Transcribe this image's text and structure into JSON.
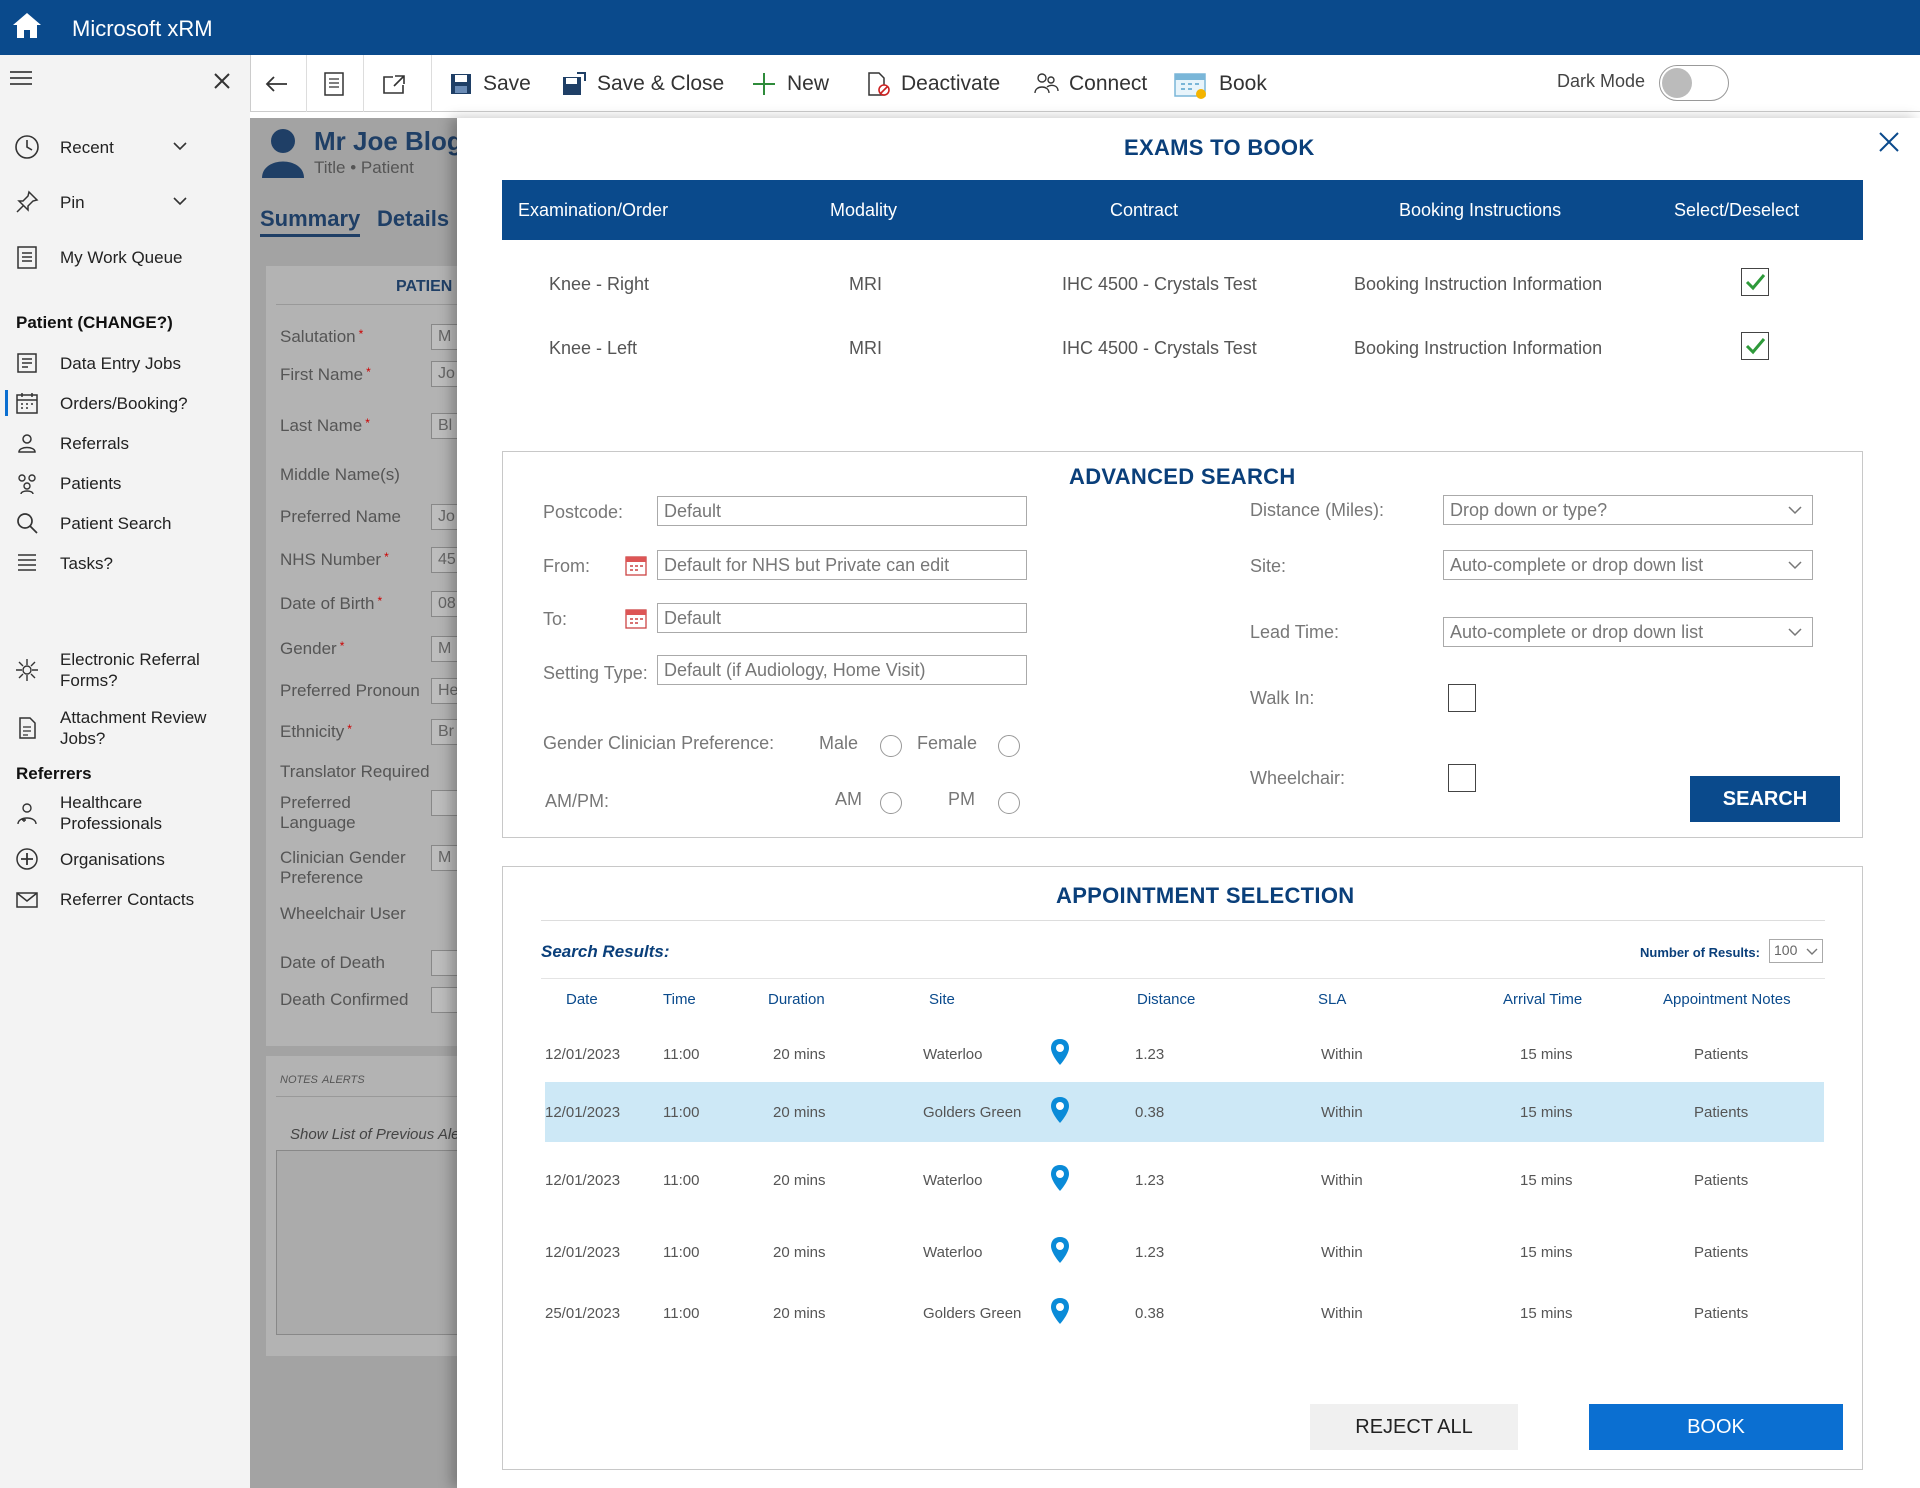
{
  "app": {
    "title": "Microsoft xRM"
  },
  "nav": {
    "recent": "Recent",
    "pin": "Pin",
    "work_queue": "My Work Queue",
    "patient_section": "Patient (CHANGE?)",
    "patient_items": [
      "Data Entry Jobs",
      "Orders/Booking?",
      "Referrals",
      "Patients",
      "Patient Search",
      "Tasks?",
      "Electronic Referral Forms?",
      "Attachment Review Jobs?"
    ],
    "referrers_section": "Referrers",
    "referrer_items": [
      "Healthcare Professionals",
      "Organisations",
      "Referrer Contacts"
    ]
  },
  "toolbar": {
    "save": "Save",
    "save_close": "Save & Close",
    "new": "New",
    "deactivate": "Deactivate",
    "connect": "Connect",
    "book": "Book",
    "dark_mode": "Dark Mode"
  },
  "record": {
    "name": "Mr Joe Blog",
    "subtitle_title": "Title",
    "subtitle_type": "Patient",
    "tabs": [
      "Summary",
      "Details"
    ],
    "section": "PATIEN",
    "fields": [
      {
        "label": "Salutation",
        "value": "M",
        "required": true
      },
      {
        "label": "First Name",
        "value": "Jo",
        "required": true
      },
      {
        "label": "Last Name",
        "value": "Bl",
        "required": true
      },
      {
        "label": "Middle Name(s)",
        "value": "",
        "required": false
      },
      {
        "label": "Preferred Name",
        "value": "Jo",
        "required": false
      },
      {
        "label": "NHS Number",
        "value": "45",
        "required": true
      },
      {
        "label": "Date of Birth",
        "value": "08",
        "required": true
      },
      {
        "label": "Gender",
        "value": "M",
        "required": true
      },
      {
        "label": "Preferred Pronoun",
        "value": "He",
        "required": false
      },
      {
        "label": "Ethnicity",
        "value": "Br",
        "required": true
      },
      {
        "label": "Translator Required",
        "value": "",
        "required": false
      },
      {
        "label": "Preferred Language",
        "value": "",
        "required": false
      },
      {
        "label": "Clinician Gender Preference",
        "value": "M",
        "required": false
      },
      {
        "label": "Wheelchair User",
        "value": "",
        "required": false
      },
      {
        "label": "Date of Death",
        "value": "",
        "required": false
      },
      {
        "label": "Death Confirmed",
        "value": "",
        "required": false
      }
    ],
    "notes_tabs": [
      "NOTES",
      "ALERTS"
    ],
    "show_list": "Show List of Previous Ale"
  },
  "exams": {
    "title": "EXAMS TO BOOK",
    "headers": [
      "Examination/Order",
      "Modality",
      "Contract",
      "Booking Instructions",
      "Select/Deselect"
    ],
    "rows": [
      {
        "exam": "Knee - Right",
        "modality": "MRI",
        "contract": "IHC 4500 - Crystals Test",
        "instructions": "Booking Instruction Information",
        "selected": true
      },
      {
        "exam": "Knee - Left",
        "modality": "MRI",
        "contract": "IHC 4500 - Crystals Test",
        "instructions": "Booking Instruction Information",
        "selected": true
      }
    ]
  },
  "advanced": {
    "title": "ADVANCED SEARCH",
    "postcode_label": "Postcode:",
    "postcode_value": "Default",
    "from_label": "From:",
    "from_value": "Default for NHS but Private can edit",
    "to_label": "To:",
    "to_value": "Default",
    "setting_label": "Setting Type:",
    "setting_value": "Default (if Audiology, Home Visit)",
    "gender_label": "Gender Clinician Preference:",
    "male": "Male",
    "female": "Female",
    "ampm_label": "AM/PM:",
    "am": "AM",
    "pm": "PM",
    "distance_label": "Distance (Miles):",
    "distance_value": "Drop down or type?",
    "site_label": "Site:",
    "site_value": "Auto-complete or drop down list",
    "lead_label": "Lead Time:",
    "lead_value": "Auto-complete or drop down list",
    "walkin_label": "Walk In:",
    "wheelchair_label": "Wheelchair:",
    "search_button": "SEARCH"
  },
  "appointments": {
    "title": "APPOINTMENT SELECTION",
    "results_label": "Search Results:",
    "num_results_label": "Number of Results:",
    "num_results_value": "100",
    "headers": [
      "Date",
      "Time",
      "Duration",
      "Site",
      "Distance",
      "SLA",
      "Arrival Time",
      "Appointment Notes"
    ],
    "rows": [
      {
        "date": "12/01/2023",
        "time": "11:00",
        "duration": "20 mins",
        "site": "Waterloo",
        "distance": "1.23",
        "sla": "Within",
        "arrival": "15 mins",
        "notes": "Patients",
        "selected": false
      },
      {
        "date": "12/01/2023",
        "time": "11:00",
        "duration": "20 mins",
        "site": "Golders Green",
        "distance": "0.38",
        "sla": "Within",
        "arrival": "15 mins",
        "notes": "Patients",
        "selected": true
      },
      {
        "date": "12/01/2023",
        "time": "11:00",
        "duration": "20 mins",
        "site": "Waterloo",
        "distance": "1.23",
        "sla": "Within",
        "arrival": "15 mins",
        "notes": "Patients",
        "selected": false
      },
      {
        "date": "12/01/2023",
        "time": "11:00",
        "duration": "20 mins",
        "site": "Waterloo",
        "distance": "1.23",
        "sla": "Within",
        "arrival": "15 mins",
        "notes": "Patients",
        "selected": false
      },
      {
        "date": "25/01/2023",
        "time": "11:00",
        "duration": "20 mins",
        "site": "Golders Green",
        "distance": "0.38",
        "sla": "Within",
        "arrival": "15 mins",
        "notes": "Patients",
        "selected": false
      }
    ],
    "reject_button": "REJECT ALL",
    "book_button": "BOOK"
  },
  "colors": {
    "brand": "#0a4a8c",
    "accent": "#0b6fd1",
    "selected_row": "#cde8f6",
    "pin": "#0a8bd8"
  }
}
